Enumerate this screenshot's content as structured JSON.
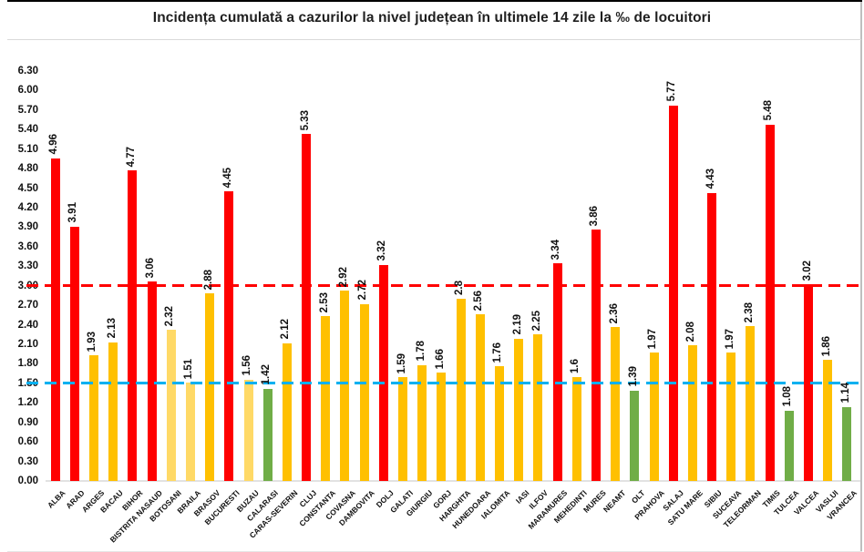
{
  "frame": {
    "title": "Incidența cumulată a cazurilor la nivel județean în ultimele 14 zile la ‰ de locuitori"
  },
  "chart_data": {
    "type": "bar",
    "title": "Incidența cumulată a cazurilor la nivel județean în ultimele 14 zile la ‰ de locuitori",
    "xlabel": "",
    "ylabel": "",
    "ylim": [
      0,
      6.3
    ],
    "ytick_step": 0.3,
    "grid": false,
    "legend": null,
    "yticks": [
      "0.00",
      "0.30",
      "0.60",
      "0.90",
      "1.20",
      "1.50",
      "1.80",
      "2.10",
      "2.40",
      "2.70",
      "3.00",
      "3.30",
      "3.60",
      "3.90",
      "4.20",
      "4.50",
      "4.80",
      "5.10",
      "5.40",
      "5.70",
      "6.00",
      "6.30"
    ],
    "thresholds": [
      {
        "name": "red-threshold-line",
        "value": 3.0,
        "color": "#FF0000",
        "style": "dashed"
      },
      {
        "name": "blue-threshold-line",
        "value": 1.5,
        "color": "#00B0F0",
        "style": "dashed"
      }
    ],
    "palette": {
      "red": "#FF0000",
      "gold": "#FFC000",
      "lightgold": "#FFD966",
      "green": "#70AD47"
    },
    "bars": [
      {
        "category": "ALBA",
        "value": 4.96,
        "label": "4.96",
        "level": "red"
      },
      {
        "category": "ARAD",
        "value": 3.91,
        "label": "3.91",
        "level": "red"
      },
      {
        "category": "ARGES",
        "value": 1.93,
        "label": "1.93",
        "level": "gold"
      },
      {
        "category": "BACAU",
        "value": 2.13,
        "label": "2.13",
        "level": "gold"
      },
      {
        "category": "BIHOR",
        "value": 4.77,
        "label": "4.77",
        "level": "red"
      },
      {
        "category": "BISTRITA NASAUD",
        "value": 3.06,
        "label": "3.06",
        "level": "red"
      },
      {
        "category": "BOTOSANI",
        "value": 2.32,
        "label": "2.32",
        "level": "lightgold"
      },
      {
        "category": "BRAILA",
        "value": 1.51,
        "label": "1.51",
        "level": "lightgold"
      },
      {
        "category": "BRASOV",
        "value": 2.88,
        "label": "2.88",
        "level": "gold"
      },
      {
        "category": "BUCURESTI",
        "value": 4.45,
        "label": "4.45",
        "level": "red"
      },
      {
        "category": "BUZAU",
        "value": 1.56,
        "label": "1.56",
        "level": "lightgold"
      },
      {
        "category": "CALARASI",
        "value": 1.42,
        "label": "1.42",
        "level": "green"
      },
      {
        "category": "CARAS-SEVERIN",
        "value": 2.12,
        "label": "2.12",
        "level": "gold"
      },
      {
        "category": "CLUJ",
        "value": 5.33,
        "label": "5.33",
        "level": "red"
      },
      {
        "category": "CONSTANTA",
        "value": 2.53,
        "label": "2.53",
        "level": "gold"
      },
      {
        "category": "COVASNA",
        "value": 2.92,
        "label": "2.92",
        "level": "gold"
      },
      {
        "category": "DAMBOVITA",
        "value": 2.72,
        "label": "2.72",
        "level": "gold"
      },
      {
        "category": "DOLJ",
        "value": 3.32,
        "label": "3.32",
        "level": "red"
      },
      {
        "category": "GALATI",
        "value": 1.59,
        "label": "1.59",
        "level": "gold"
      },
      {
        "category": "GIURGIU",
        "value": 1.78,
        "label": "1.78",
        "level": "gold"
      },
      {
        "category": "GORJ",
        "value": 1.66,
        "label": "1.66",
        "level": "gold"
      },
      {
        "category": "HARGHITA",
        "value": 2.8,
        "label": "2.8",
        "level": "gold"
      },
      {
        "category": "HUNEDOARA",
        "value": 2.56,
        "label": "2.56",
        "level": "gold"
      },
      {
        "category": "IALOMITA",
        "value": 1.76,
        "label": "1.76",
        "level": "gold"
      },
      {
        "category": "IASI",
        "value": 2.19,
        "label": "2.19",
        "level": "gold"
      },
      {
        "category": "ILFOV",
        "value": 2.25,
        "label": "2.25",
        "level": "gold"
      },
      {
        "category": "MARAMURES",
        "value": 3.34,
        "label": "3.34",
        "level": "red"
      },
      {
        "category": "MEHEDINTI",
        "value": 1.6,
        "label": "1.6",
        "level": "gold"
      },
      {
        "category": "MURES",
        "value": 3.86,
        "label": "3.86",
        "level": "red"
      },
      {
        "category": "NEAMT",
        "value": 2.36,
        "label": "2.36",
        "level": "gold"
      },
      {
        "category": "OLT",
        "value": 1.39,
        "label": "1.39",
        "level": "green"
      },
      {
        "category": "PRAHOVA",
        "value": 1.97,
        "label": "1.97",
        "level": "gold"
      },
      {
        "category": "SALAJ",
        "value": 5.77,
        "label": "5.77",
        "level": "red"
      },
      {
        "category": "SATU MARE",
        "value": 2.08,
        "label": "2.08",
        "level": "gold"
      },
      {
        "category": "SIBIU",
        "value": 4.43,
        "label": "4.43",
        "level": "red"
      },
      {
        "category": "SUCEAVA",
        "value": 1.97,
        "label": "1.97",
        "level": "gold"
      },
      {
        "category": "TELEORMAN",
        "value": 2.38,
        "label": "2.38",
        "level": "gold"
      },
      {
        "category": "TIMIS",
        "value": 5.48,
        "label": "5.48",
        "level": "red"
      },
      {
        "category": "TULCEA",
        "value": 1.08,
        "label": "1.08",
        "level": "green"
      },
      {
        "category": "VALCEA",
        "value": 3.02,
        "label": "3.02",
        "level": "red"
      },
      {
        "category": "VASLUI",
        "value": 1.86,
        "label": "1.86",
        "level": "gold"
      },
      {
        "category": "VRANCEA",
        "value": 1.14,
        "label": "1.14",
        "level": "green"
      }
    ]
  }
}
